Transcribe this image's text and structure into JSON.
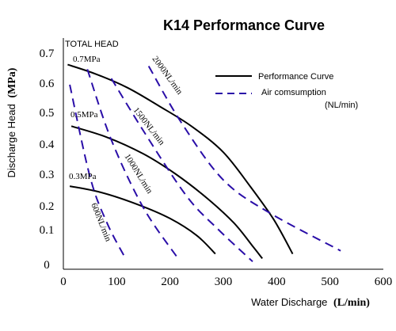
{
  "chart_data": {
    "type": "line",
    "title": "K14 Performance Curve",
    "ylabel_main": "Discharge Head",
    "ylabel_unit": "(MPa)",
    "xlabel_main": "Water Discharge",
    "xlabel_unit": "(L/min)",
    "total_head_label": "TOTAL HEAD",
    "xlim": [
      0,
      600
    ],
    "ylim": [
      0,
      0.7
    ],
    "x_ticks": [
      "0",
      "100",
      "200",
      "300",
      "400",
      "500",
      "600"
    ],
    "y_ticks": [
      "0",
      "0.1",
      "0.2",
      "0.3",
      "0.4",
      "0.5",
      "0.6",
      "0.7"
    ],
    "grid": false,
    "legend": {
      "position": "top-right",
      "performance_label": "Performance Curve",
      "air_label": "Air comsumption",
      "air_unit": "(NL/min)"
    },
    "series": [
      {
        "name": "Performance Curve",
        "style": "solid",
        "label": "0.7MPa",
        "points": [
          [
            8,
            0.665
          ],
          [
            60,
            0.635
          ],
          [
            120,
            0.59
          ],
          [
            180,
            0.53
          ],
          [
            240,
            0.465
          ],
          [
            300,
            0.38
          ],
          [
            350,
            0.27
          ],
          [
            395,
            0.16
          ],
          [
            430,
            0.05
          ]
        ]
      },
      {
        "name": "Performance Curve",
        "style": "solid",
        "label": "0.5MPa",
        "points": [
          [
            15,
            0.465
          ],
          [
            80,
            0.43
          ],
          [
            150,
            0.375
          ],
          [
            210,
            0.31
          ],
          [
            270,
            0.23
          ],
          [
            320,
            0.15
          ],
          [
            355,
            0.075
          ],
          [
            373,
            0.035
          ]
        ]
      },
      {
        "name": "Performance Curve",
        "style": "solid",
        "label": "0.3MPa",
        "points": [
          [
            12,
            0.27
          ],
          [
            70,
            0.25
          ],
          [
            140,
            0.21
          ],
          [
            200,
            0.165
          ],
          [
            250,
            0.11
          ],
          [
            285,
            0.05
          ]
        ]
      },
      {
        "name": "Air comsumption",
        "style": "dashed",
        "label": "600NL/min",
        "points": [
          [
            12,
            0.6
          ],
          [
            50,
            0.3
          ],
          [
            82,
            0.15
          ],
          [
            115,
            0.04
          ]
        ]
      },
      {
        "name": "Air comsumption",
        "style": "dashed",
        "label": "1000NL/min",
        "points": [
          [
            45,
            0.65
          ],
          [
            90,
            0.42
          ],
          [
            150,
            0.2
          ],
          [
            215,
            0.035
          ]
        ]
      },
      {
        "name": "Air comsumption",
        "style": "dashed",
        "label": "1500NL/min",
        "points": [
          [
            90,
            0.62
          ],
          [
            150,
            0.45
          ],
          [
            230,
            0.24
          ],
          [
            290,
            0.13
          ],
          [
            355,
            0.025
          ]
        ]
      },
      {
        "name": "Air comsumption",
        "style": "dashed",
        "label": "2000NL/min",
        "points": [
          [
            160,
            0.66
          ],
          [
            220,
            0.48
          ],
          [
            300,
            0.29
          ],
          [
            390,
            0.18
          ],
          [
            520,
            0.06
          ]
        ]
      }
    ]
  },
  "colors": {
    "performance": "#000000",
    "air": "#2a0ea8",
    "text": "#000000"
  }
}
